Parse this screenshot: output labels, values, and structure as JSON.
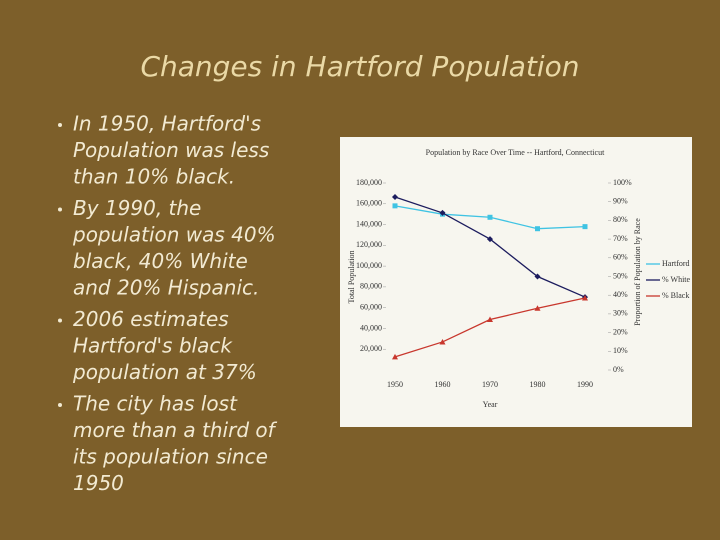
{
  "title": "Changes in Hartford Population",
  "bullets": [
    [
      "In 1950, Hartford's",
      "Population was less",
      "than 10% black."
    ],
    [
      "By 1990, the",
      "population was 40%",
      "black, 40% White",
      "and 20% Hispanic."
    ],
    [
      "2006 estimates",
      "Hartford's black",
      "population at 37%"
    ],
    [
      "The city has lost",
      "more than a third of",
      "its population since",
      "1950"
    ]
  ],
  "chart_data": {
    "type": "line",
    "title": "Population by Race Over Time -- Hartford, Connecticut",
    "x_label": "Year",
    "y_label": "Total Population",
    "y2_label": "Proportion of Population by Race",
    "categories": [
      "1950",
      "1960",
      "1970",
      "1980",
      "1990"
    ],
    "ylim": [
      0,
      180000
    ],
    "yticks": [
      {
        "value": 20000,
        "label": "20,000"
      },
      {
        "value": 40000,
        "label": "40,000"
      },
      {
        "value": 60000,
        "label": "60,000"
      },
      {
        "value": 80000,
        "label": "80,000"
      },
      {
        "value": 100000,
        "label": "100,000"
      },
      {
        "value": 120000,
        "label": "120,000"
      },
      {
        "value": 140000,
        "label": "140,000"
      },
      {
        "value": 160000,
        "label": "160,000"
      },
      {
        "value": 180000,
        "label": "180,000"
      }
    ],
    "y2lim": [
      0,
      100
    ],
    "y2ticks": [
      {
        "value": 0,
        "label": "0%"
      },
      {
        "value": 10,
        "label": "10%"
      },
      {
        "value": 20,
        "label": "20%"
      },
      {
        "value": 30,
        "label": "30%"
      },
      {
        "value": 40,
        "label": "40%"
      },
      {
        "value": 50,
        "label": "50%"
      },
      {
        "value": 60,
        "label": "60%"
      },
      {
        "value": 70,
        "label": "70%"
      },
      {
        "value": 80,
        "label": "80%"
      },
      {
        "value": 90,
        "label": "90%"
      },
      {
        "value": 100,
        "label": "100%"
      }
    ],
    "grid": false,
    "legend": "right",
    "series": [
      {
        "name": "Hartford",
        "color": "#3fc3e3",
        "values": [
          158000,
          150000,
          147000,
          136000,
          138000
        ]
      },
      {
        "name": "% White",
        "color": "#1c1c5e",
        "axis": "y2",
        "values": [
          92.5,
          84,
          70,
          50,
          39
        ]
      },
      {
        "name": "% Black",
        "color": "#c8372d",
        "axis": "y2",
        "values": [
          7,
          15,
          27,
          33,
          38.5
        ]
      }
    ]
  }
}
